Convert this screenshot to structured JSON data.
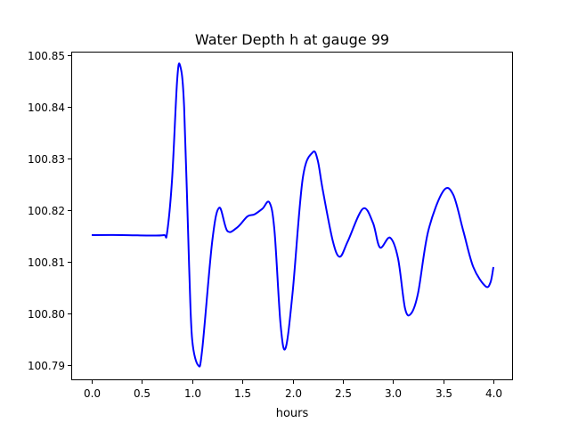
{
  "chart_data": {
    "type": "line",
    "title": "Water Depth h at gauge 99",
    "xlabel": "hours",
    "ylabel": "",
    "xlim": [
      -0.204,
      4.195
    ],
    "ylim": [
      100.7871,
      100.8507
    ],
    "grid": false,
    "xticks": [
      0.0,
      0.5,
      1.0,
      1.5,
      2.0,
      2.5,
      3.0,
      3.5,
      4.0
    ],
    "xtick_labels": [
      "0.0",
      "0.5",
      "1.0",
      "1.5",
      "2.0",
      "2.5",
      "3.0",
      "3.5",
      "4.0"
    ],
    "yticks": [
      100.79,
      100.8,
      100.81,
      100.82,
      100.83,
      100.84,
      100.85
    ],
    "ytick_labels": [
      "100.79",
      "100.80",
      "100.81",
      "100.82",
      "100.83",
      "100.84",
      "100.85"
    ],
    "series": [
      {
        "name": "h",
        "color": "#0000ff",
        "x": [
          0.0,
          0.3,
          0.6,
          0.72,
          0.75,
          0.8,
          0.85,
          0.88,
          0.92,
          0.97,
          1.0,
          1.06,
          1.1,
          1.2,
          1.27,
          1.35,
          1.45,
          1.55,
          1.62,
          1.7,
          1.77,
          1.82,
          1.88,
          1.93,
          2.0,
          2.1,
          2.2,
          2.25,
          2.3,
          2.4,
          2.47,
          2.55,
          2.7,
          2.8,
          2.87,
          2.97,
          3.05,
          3.12,
          3.18,
          3.25,
          3.35,
          3.5,
          3.6,
          3.7,
          3.8,
          3.92,
          3.97,
          4.0
        ],
        "y": [
          100.8152,
          100.8152,
          100.8151,
          100.8152,
          100.8156,
          100.826,
          100.845,
          100.848,
          100.84,
          100.809,
          100.795,
          100.79,
          100.793,
          100.814,
          100.8205,
          100.816,
          100.8167,
          100.8188,
          100.8192,
          100.8203,
          100.8215,
          100.816,
          100.798,
          100.7933,
          100.804,
          100.826,
          100.8312,
          100.8297,
          100.824,
          100.8141,
          100.811,
          100.814,
          100.8203,
          100.8176,
          100.8128,
          100.8147,
          100.8107,
          100.801,
          100.8,
          100.804,
          100.8159,
          100.8237,
          100.823,
          100.816,
          100.809,
          100.8053,
          100.806,
          100.809
        ]
      }
    ]
  }
}
